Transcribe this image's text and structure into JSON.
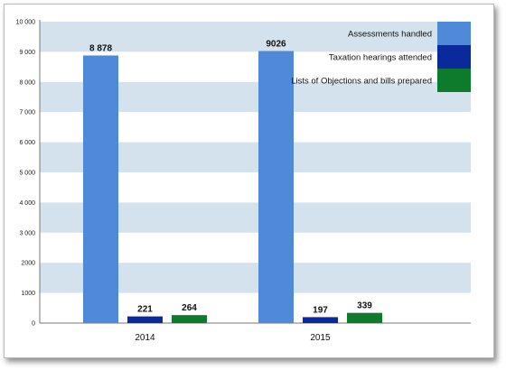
{
  "chart_data": {
    "type": "bar",
    "title": "",
    "xlabel": "",
    "ylabel": "",
    "categories": [
      "2014",
      "2015"
    ],
    "ylim": [
      0,
      10000
    ],
    "yticks": [
      0,
      1000,
      2000,
      3000,
      4000,
      5000,
      6000,
      7000,
      8000,
      9000,
      10000
    ],
    "ytick_labels": [
      "0",
      "1000",
      "2000",
      "3 000",
      "4 000",
      "5 000",
      "6 000",
      "7 000",
      "8 000",
      "9 000",
      "10 000"
    ],
    "grid": "alternating horizontal bands",
    "legend_position": "top-right",
    "series": [
      {
        "name": "Assessments handled",
        "color": "#5089d8",
        "values": [
          8878,
          9026
        ],
        "labels": [
          "8 878",
          "9026"
        ]
      },
      {
        "name": "Taxation hearings attended",
        "color": "#0a2a9c",
        "values": [
          221,
          197
        ],
        "labels": [
          "221",
          "197"
        ]
      },
      {
        "name": "Lists of Objections and bills prepared",
        "color": "#0e7a2c",
        "values": [
          264,
          339
        ],
        "labels": [
          "264",
          "339"
        ]
      }
    ],
    "band_color": "#d3e2ec"
  }
}
